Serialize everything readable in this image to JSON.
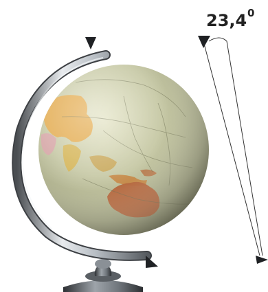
{
  "angle_label": {
    "value": "23,4",
    "unit": "0"
  },
  "colors": {
    "ocean": "#c7c9a6",
    "ocean_shadow": "#8e8f6c",
    "landmass_asia": "#e5a94a",
    "landmass_australia": "#b5683f",
    "meridian": "#c8ccd0",
    "stand_metal": "#9aa0a6",
    "stand_dark": "#3d4044",
    "axis_line": "#333333"
  },
  "icons": {
    "top_pin": "triangle-pointer-icon",
    "bottom_pin": "triangle-pointer-icon",
    "axis_top_marker": "triangle-pointer-icon",
    "axis_bottom_marker": "triangle-pointer-icon"
  }
}
